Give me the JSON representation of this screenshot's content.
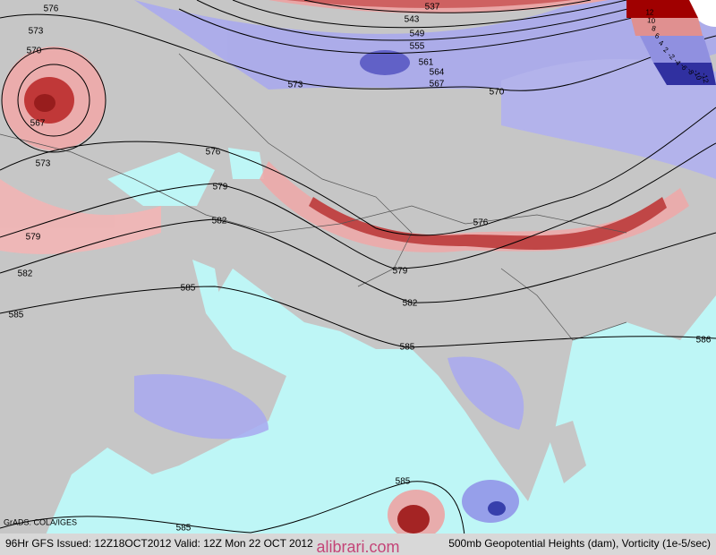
{
  "map": {
    "footer_left": "96Hr GFS Issued: 12Z18OCT2012 Valid: 12Z Mon 22 OCT 2012",
    "footer_right": "500mb Geopotential Heights (dam), Vorticity (1e-5/sec)",
    "credit": "GrADS: COLA/IGES",
    "watermark": "alibrari.com",
    "colorbar_labels": [
      "12",
      "10",
      "8",
      "6",
      "4",
      "2",
      "-2",
      "-4",
      "-6",
      "-8",
      "-10",
      "-12"
    ],
    "contour_labels": [
      "576",
      "573",
      "570",
      "567",
      "573",
      "579",
      "582",
      "585",
      "537",
      "543",
      "549",
      "555",
      "561",
      "564",
      "567",
      "573",
      "576",
      "579",
      "582",
      "585",
      "579",
      "582",
      "585",
      "576",
      "570",
      "585",
      "585",
      "586"
    ]
  }
}
